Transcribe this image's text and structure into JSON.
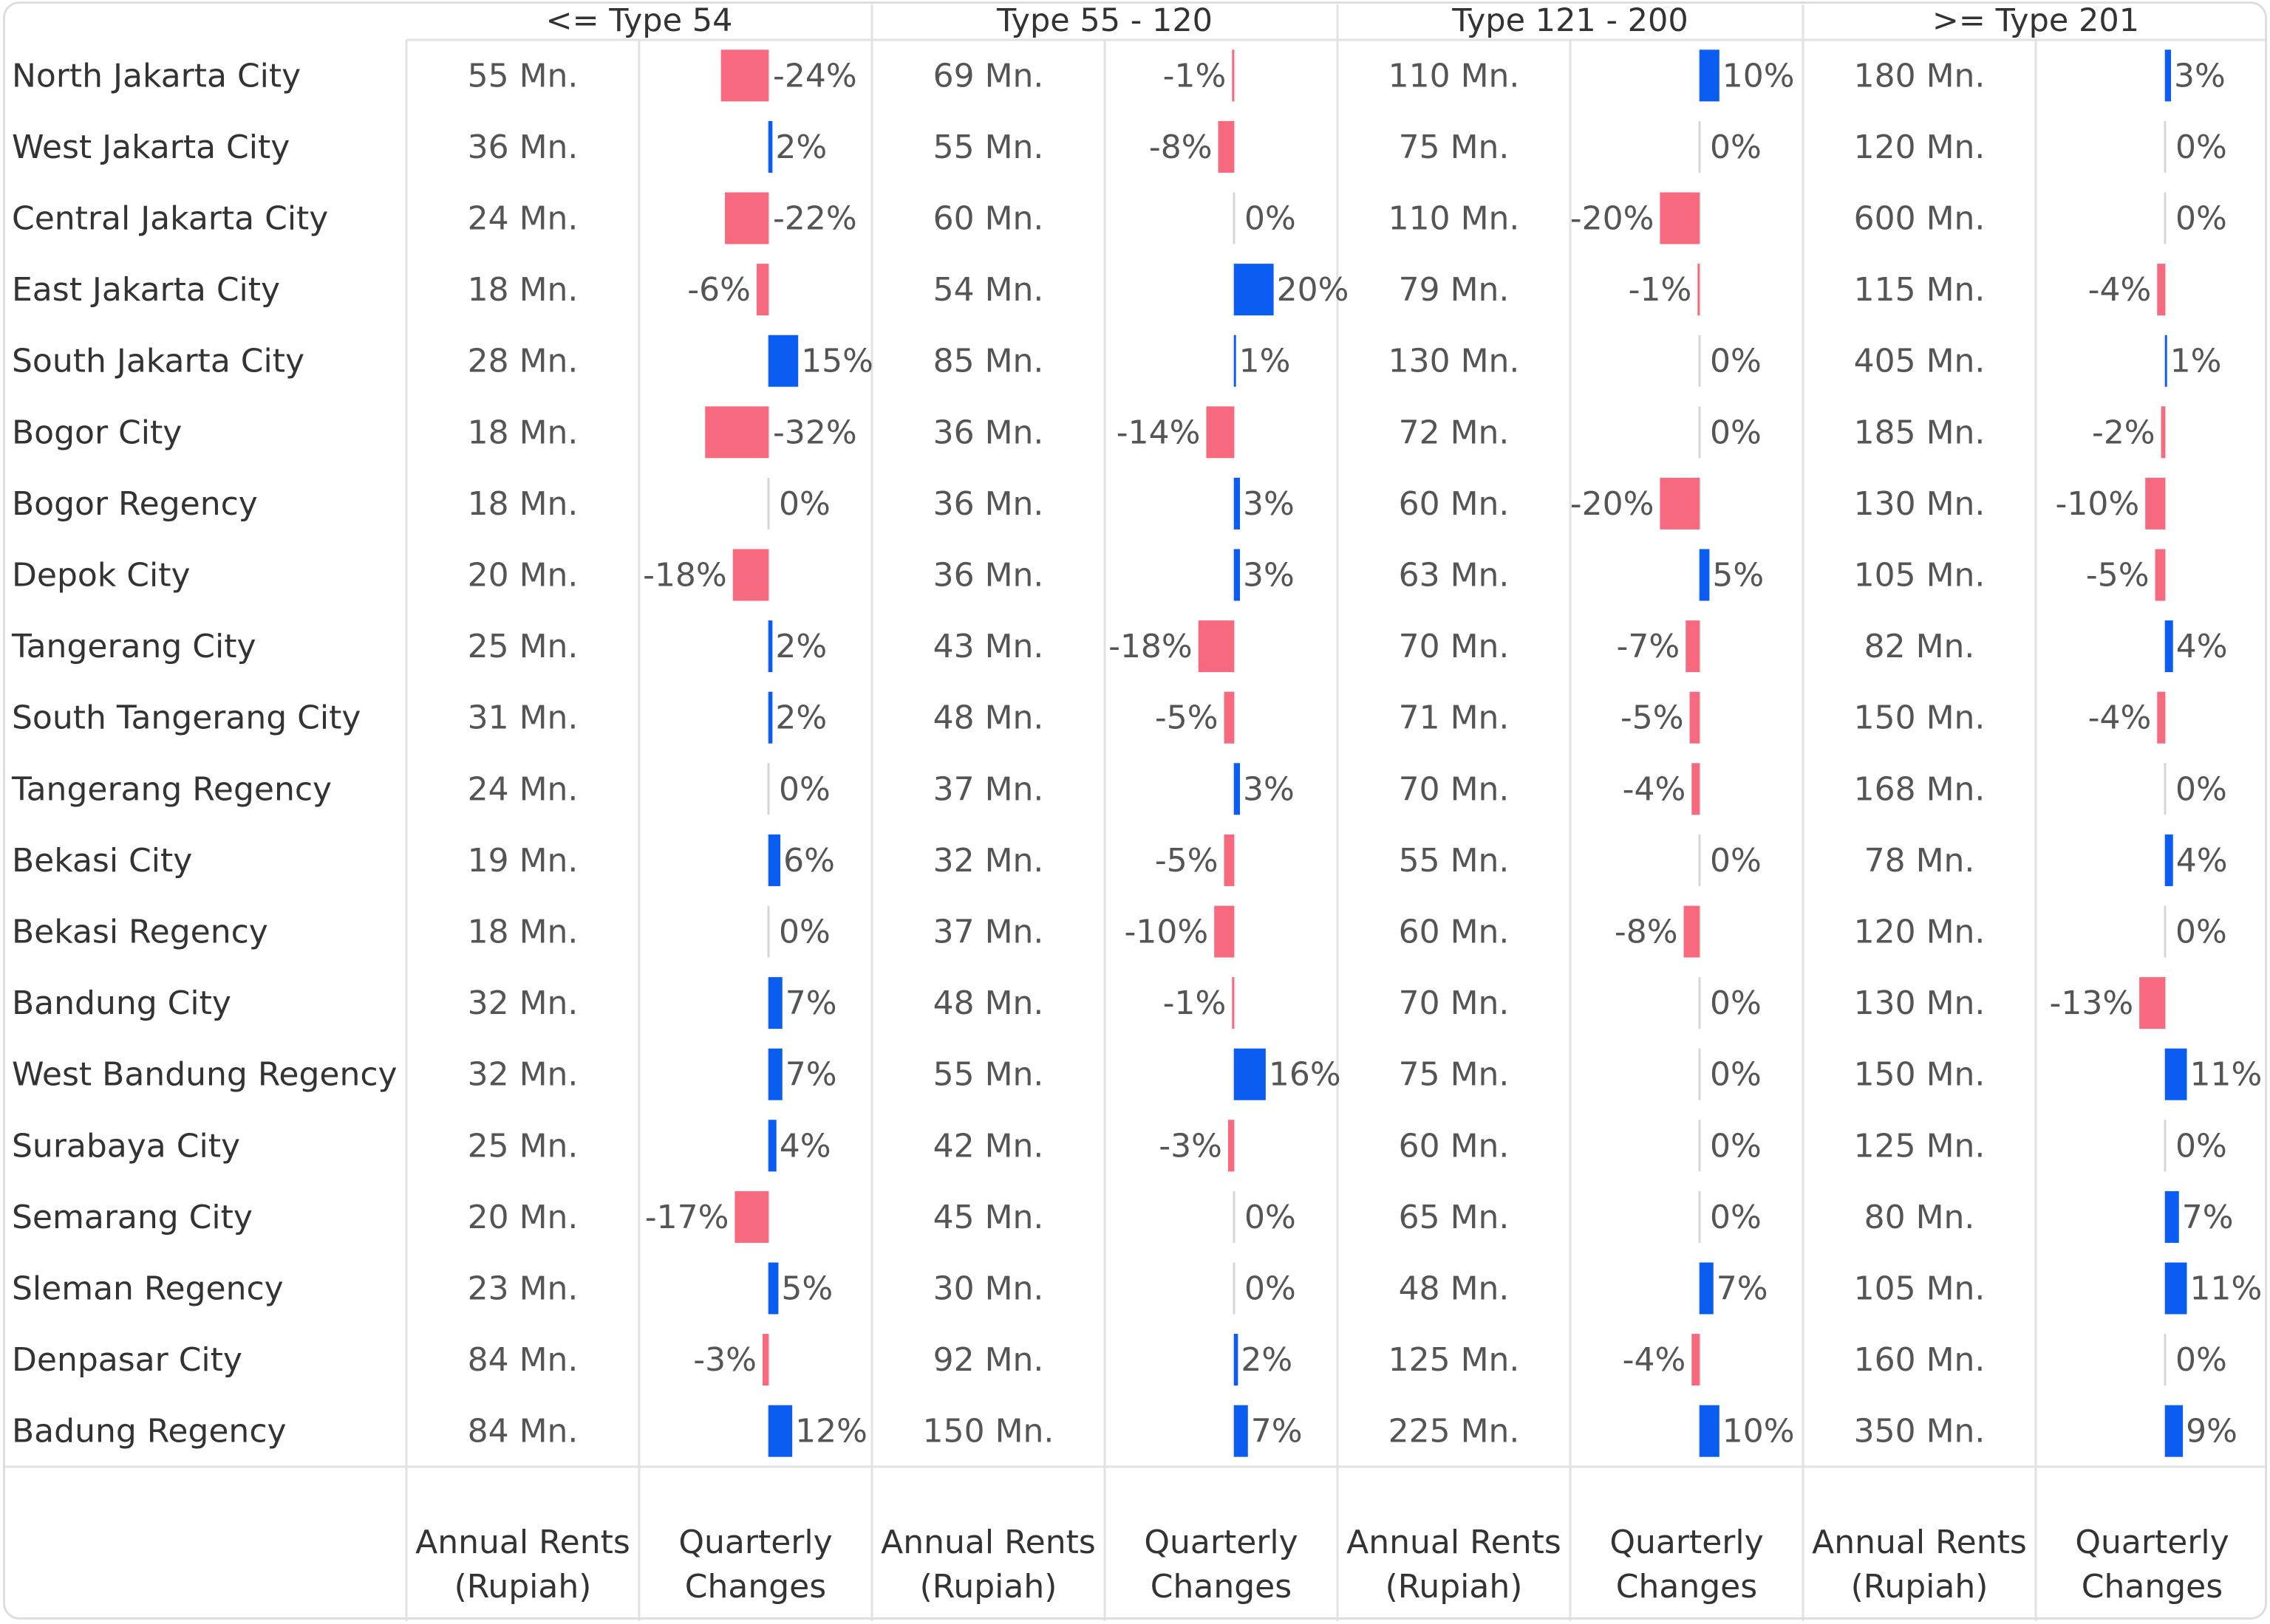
{
  "chart_data": {
    "type": "table",
    "groups": [
      "<= Type 54",
      "Type 55 - 120",
      "Type 121 - 200",
      ">= Type 201"
    ],
    "columns": [
      {
        "line1": "Annual Rents",
        "line2": "(Rupiah)"
      },
      {
        "line1": "Quarterly",
        "line2": "Changes"
      }
    ],
    "rows": [
      {
        "name": "North Jakarta City",
        "rents": [
          "55 Mn.",
          "69 Mn.",
          "110 Mn.",
          "180 Mn."
        ],
        "changes": [
          -24,
          -1,
          10,
          3
        ]
      },
      {
        "name": "West Jakarta City",
        "rents": [
          "36 Mn.",
          "55 Mn.",
          "75 Mn.",
          "120 Mn."
        ],
        "changes": [
          2,
          -8,
          0,
          0
        ]
      },
      {
        "name": "Central Jakarta City",
        "rents": [
          "24 Mn.",
          "60 Mn.",
          "110 Mn.",
          "600 Mn."
        ],
        "changes": [
          -22,
          0,
          -20,
          0
        ]
      },
      {
        "name": "East Jakarta City",
        "rents": [
          "18 Mn.",
          "54 Mn.",
          "79 Mn.",
          "115 Mn."
        ],
        "changes": [
          -6,
          20,
          -1,
          -4
        ]
      },
      {
        "name": "South Jakarta City",
        "rents": [
          "28 Mn.",
          "85 Mn.",
          "130 Mn.",
          "405 Mn."
        ],
        "changes": [
          15,
          1,
          0,
          1
        ]
      },
      {
        "name": "Bogor City",
        "rents": [
          "18 Mn.",
          "36 Mn.",
          "72 Mn.",
          "185 Mn."
        ],
        "changes": [
          -32,
          -14,
          0,
          -2
        ]
      },
      {
        "name": "Bogor Regency",
        "rents": [
          "18 Mn.",
          "36 Mn.",
          "60 Mn.",
          "130 Mn."
        ],
        "changes": [
          0,
          3,
          -20,
          -10
        ]
      },
      {
        "name": "Depok City",
        "rents": [
          "20 Mn.",
          "36 Mn.",
          "63 Mn.",
          "105 Mn."
        ],
        "changes": [
          -18,
          3,
          5,
          -5
        ]
      },
      {
        "name": "Tangerang City",
        "rents": [
          "25 Mn.",
          "43 Mn.",
          "70 Mn.",
          "82 Mn."
        ],
        "changes": [
          2,
          -18,
          -7,
          4
        ]
      },
      {
        "name": "South Tangerang City",
        "rents": [
          "31 Mn.",
          "48 Mn.",
          "71 Mn.",
          "150 Mn."
        ],
        "changes": [
          2,
          -5,
          -5,
          -4
        ]
      },
      {
        "name": "Tangerang Regency",
        "rents": [
          "24 Mn.",
          "37 Mn.",
          "70 Mn.",
          "168 Mn."
        ],
        "changes": [
          0,
          3,
          -4,
          0
        ]
      },
      {
        "name": "Bekasi City",
        "rents": [
          "19 Mn.",
          "32 Mn.",
          "55 Mn.",
          "78 Mn."
        ],
        "changes": [
          6,
          -5,
          0,
          4
        ]
      },
      {
        "name": "Bekasi Regency",
        "rents": [
          "18 Mn.",
          "37 Mn.",
          "60 Mn.",
          "120 Mn."
        ],
        "changes": [
          0,
          -10,
          -8,
          0
        ]
      },
      {
        "name": "Bandung City",
        "rents": [
          "32 Mn.",
          "48 Mn.",
          "70 Mn.",
          "130 Mn."
        ],
        "changes": [
          7,
          -1,
          0,
          -13
        ]
      },
      {
        "name": "West Bandung Regency",
        "rents": [
          "32 Mn.",
          "55 Mn.",
          "75 Mn.",
          "150 Mn."
        ],
        "changes": [
          7,
          16,
          0,
          11
        ]
      },
      {
        "name": "Surabaya City",
        "rents": [
          "25 Mn.",
          "42 Mn.",
          "60 Mn.",
          "125 Mn."
        ],
        "changes": [
          4,
          -3,
          0,
          0
        ]
      },
      {
        "name": "Semarang City",
        "rents": [
          "20 Mn.",
          "45 Mn.",
          "65 Mn.",
          "80 Mn."
        ],
        "changes": [
          -17,
          0,
          0,
          7
        ]
      },
      {
        "name": "Sleman Regency",
        "rents": [
          "23 Mn.",
          "30 Mn.",
          "48 Mn.",
          "105 Mn."
        ],
        "changes": [
          5,
          0,
          7,
          11
        ]
      },
      {
        "name": "Denpasar City",
        "rents": [
          "84 Mn.",
          "92 Mn.",
          "125 Mn.",
          "160 Mn."
        ],
        "changes": [
          -3,
          2,
          -4,
          0
        ]
      },
      {
        "name": "Badung Regency",
        "rents": [
          "84 Mn.",
          "150 Mn.",
          "225 Mn.",
          "350 Mn."
        ],
        "changes": [
          12,
          7,
          10,
          9
        ]
      }
    ],
    "colors": {
      "positive": "#0a5df0",
      "negative": "#f7697f",
      "text": "#555555",
      "label": "#333333",
      "grid": "#e2e2e2",
      "tick": "#d6d6d6"
    }
  }
}
